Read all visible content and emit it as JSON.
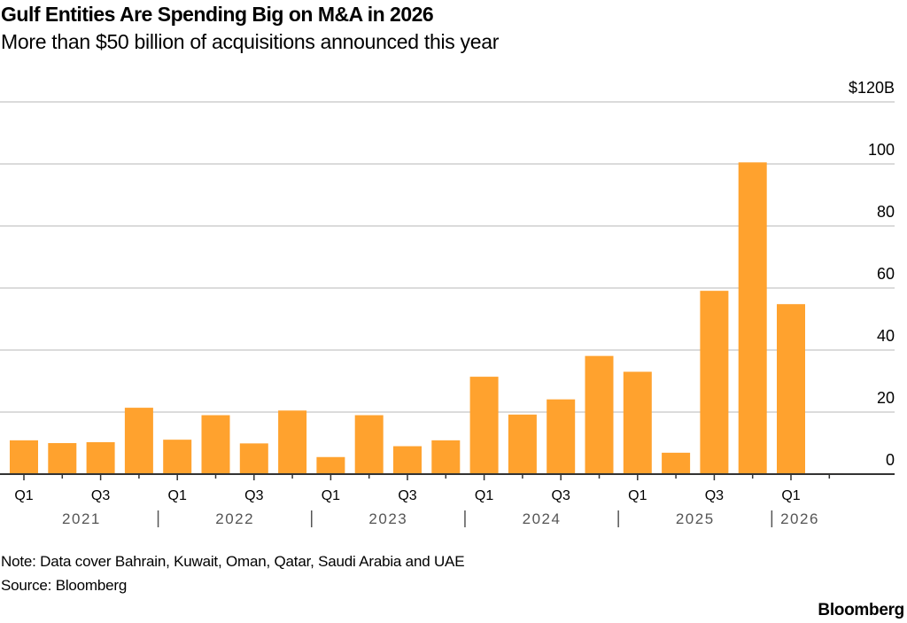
{
  "chart_data": {
    "type": "bar",
    "title": "Gulf Entities Are Spending Big on M&A in 2026",
    "subtitle": "More than $50 billion of acquisitions announced this year",
    "xlabel": "",
    "ylabel": "",
    "ylim": [
      0,
      120
    ],
    "yticks": [
      0,
      20,
      40,
      60,
      80,
      100,
      120
    ],
    "ytick_labels": [
      "0",
      "20",
      "40",
      "60",
      "80",
      "100",
      "$120B"
    ],
    "grid": true,
    "y_axis_side": "right",
    "color": "#FFA22E",
    "categories": [
      "2021 Q1",
      "2021 Q2",
      "2021 Q3",
      "2021 Q4",
      "2022 Q1",
      "2022 Q2",
      "2022 Q3",
      "2022 Q4",
      "2023 Q1",
      "2023 Q2",
      "2023 Q3",
      "2023 Q4",
      "2024 Q1",
      "2024 Q2",
      "2024 Q3",
      "2024 Q4",
      "2025 Q1",
      "2025 Q2",
      "2025 Q3",
      "2025 Q4",
      "2026 Q1",
      "2026 Q2"
    ],
    "values": [
      10.9,
      10.0,
      10.3,
      21.4,
      11.1,
      19.0,
      9.9,
      20.5,
      5.5,
      19.0,
      9.0,
      10.9,
      31.4,
      19.2,
      24.1,
      38.1,
      33.0,
      6.9,
      59.1,
      100.5,
      54.8,
      0.3
    ],
    "quarter_labels": [
      "Q1",
      "",
      "Q3",
      "",
      "Q1",
      "",
      "Q3",
      "",
      "Q1",
      "",
      "Q3",
      "",
      "Q1",
      "",
      "Q3",
      "",
      "Q1",
      "",
      "Q3",
      "",
      "Q1",
      ""
    ],
    "year_groups": [
      {
        "label": "2021",
        "start": 0,
        "count": 4
      },
      {
        "label": "2022",
        "start": 4,
        "count": 4
      },
      {
        "label": "2023",
        "start": 8,
        "count": 4
      },
      {
        "label": "2024",
        "start": 12,
        "count": 4
      },
      {
        "label": "2025",
        "start": 16,
        "count": 4
      },
      {
        "label": "2026",
        "start": 20,
        "count": 2
      }
    ],
    "note": "Note: Data cover Bahrain, Kuwait, Oman, Qatar, Saudi Arabia and UAE",
    "source": "Source: Bloomberg"
  },
  "brand": "Bloomberg"
}
